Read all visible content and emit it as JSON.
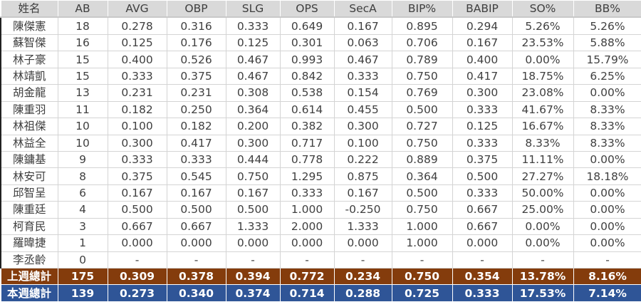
{
  "table": {
    "headers": [
      "姓名",
      "AB",
      "AVG",
      "OBP",
      "SLG",
      "OPS",
      "SecA",
      "BIP%",
      "BABIP",
      "SO%",
      "BB%"
    ],
    "rows": [
      [
        "陳傑憲",
        "18",
        "0.278",
        "0.316",
        "0.333",
        "0.649",
        "0.167",
        "0.895",
        "0.294",
        "5.26%",
        "5.26%"
      ],
      [
        "蘇智傑",
        "16",
        "0.125",
        "0.176",
        "0.125",
        "0.301",
        "0.063",
        "0.706",
        "0.167",
        "23.53%",
        "5.88%"
      ],
      [
        "林子豪",
        "15",
        "0.400",
        "0.526",
        "0.467",
        "0.993",
        "0.467",
        "0.789",
        "0.400",
        "0.00%",
        "15.79%"
      ],
      [
        "林靖凱",
        "15",
        "0.333",
        "0.375",
        "0.467",
        "0.842",
        "0.333",
        "0.750",
        "0.417",
        "18.75%",
        "6.25%"
      ],
      [
        "胡金龍",
        "13",
        "0.231",
        "0.231",
        "0.308",
        "0.538",
        "0.154",
        "0.769",
        "0.300",
        "23.08%",
        "0.00%"
      ],
      [
        "陳重羽",
        "11",
        "0.182",
        "0.250",
        "0.364",
        "0.614",
        "0.455",
        "0.500",
        "0.333",
        "41.67%",
        "8.33%"
      ],
      [
        "林祖傑",
        "10",
        "0.100",
        "0.182",
        "0.200",
        "0.382",
        "0.300",
        "0.727",
        "0.125",
        "16.67%",
        "8.33%"
      ],
      [
        "林益全",
        "10",
        "0.300",
        "0.417",
        "0.300",
        "0.717",
        "0.100",
        "0.750",
        "0.333",
        "8.33%",
        "8.33%"
      ],
      [
        "陳鏞基",
        "9",
        "0.333",
        "0.333",
        "0.444",
        "0.778",
        "0.222",
        "0.889",
        "0.375",
        "11.11%",
        "0.00%"
      ],
      [
        "林安可",
        "8",
        "0.375",
        "0.545",
        "0.750",
        "1.295",
        "0.875",
        "0.364",
        "0.500",
        "27.27%",
        "18.18%"
      ],
      [
        "邱智呈",
        "6",
        "0.167",
        "0.167",
        "0.167",
        "0.333",
        "0.167",
        "0.500",
        "0.333",
        "50.00%",
        "0.00%"
      ],
      [
        "陳重廷",
        "4",
        "0.500",
        "0.500",
        "0.500",
        "1.000",
        "-0.250",
        "0.750",
        "0.667",
        "25.00%",
        "0.00%"
      ],
      [
        "柯育民",
        "3",
        "0.667",
        "0.667",
        "1.333",
        "2.000",
        "1.333",
        "1.000",
        "0.667",
        "0.00%",
        "0.00%"
      ],
      [
        "羅暐捷",
        "1",
        "0.000",
        "0.000",
        "0.000",
        "0.000",
        "0.000",
        "1.000",
        "0.000",
        "0.00%",
        "0.00%"
      ],
      [
        "李丞齡",
        "0",
        "-",
        "-",
        "-",
        "-",
        "-",
        "-",
        "-",
        "-",
        "-"
      ]
    ],
    "totals": [
      {
        "key": "last-week",
        "color": "#843c0c",
        "cells": [
          "上週總計",
          "175",
          "0.309",
          "0.378",
          "0.394",
          "0.772",
          "0.234",
          "0.750",
          "0.354",
          "13.78%",
          "8.16%"
        ]
      },
      {
        "key": "this-week",
        "color": "#2f5597",
        "cells": [
          "本週總計",
          "139",
          "0.273",
          "0.340",
          "0.374",
          "0.714",
          "0.288",
          "0.725",
          "0.333",
          "17.53%",
          "7.14%"
        ]
      }
    ]
  }
}
